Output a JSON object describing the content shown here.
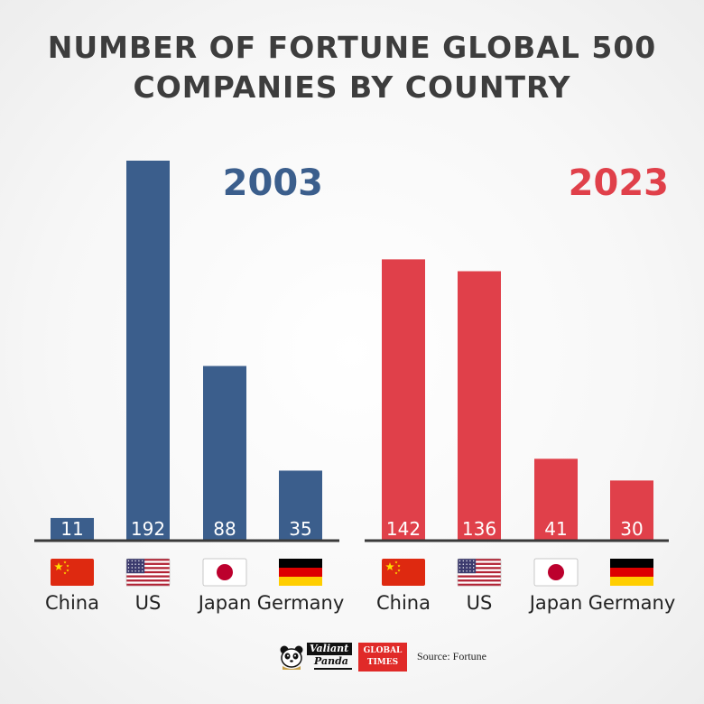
{
  "title_line1": "NUMBER OF FORTUNE GLOBAL 500",
  "title_line2": "COMPANIES BY COUNTRY",
  "colors": {
    "y2003": "#3b5e8c",
    "y2023": "#e0404a",
    "axis": "#3a3a3a",
    "title": "#3d3d3d"
  },
  "chart_data": {
    "type": "bar",
    "title": "NUMBER OF FORTUNE GLOBAL 500 COMPANIES BY COUNTRY",
    "categories": [
      "China",
      "US",
      "Japan",
      "Germany"
    ],
    "series": [
      {
        "name": "2003",
        "values": [
          11,
          192,
          88,
          35
        ]
      },
      {
        "name": "2023",
        "values": [
          142,
          136,
          41,
          30
        ]
      }
    ],
    "flags": [
      "china-flag",
      "us-flag",
      "japan-flag",
      "germany-flag"
    ],
    "legend": "panel year labels, top-right of each panel",
    "grid": false
  },
  "footer": {
    "logo1_line1": "Valiant",
    "logo1_line2": "Panda",
    "logo2_line1": "GLOBAL",
    "logo2_line2": "TIMES",
    "source": "Source: Fortune"
  }
}
